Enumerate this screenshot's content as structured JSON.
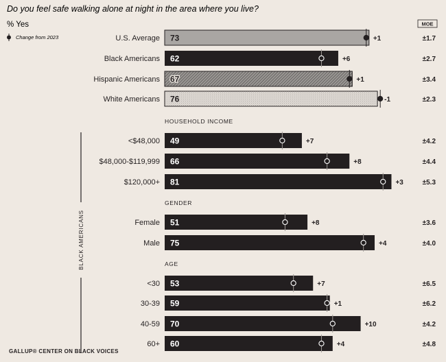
{
  "chart_data": {
    "type": "bar",
    "title": "Do you feel safe walking alone at night in the area where you live?",
    "ylabel": "% Yes",
    "legend_label": "Change from 2023",
    "moe_header": "MOE",
    "group_label": "BLACK AMERICANS",
    "footer": "GALLUP® CENTER ON BLACK VOICES",
    "xlim": [
      0,
      100
    ],
    "colors": {
      "background": "#efe9e2",
      "dark_bar": "#231f20",
      "us_average": "#a9a6a3",
      "hispanic_pattern": "#8e8b88",
      "white_pattern": "#d9d4cf"
    },
    "rows": [
      {
        "section": "",
        "label": "U.S. Average",
        "value": 73,
        "change_label": "+1",
        "change": 1,
        "moe": "±1.7",
        "style": "gray"
      },
      {
        "section": "",
        "label": "Black Americans",
        "value": 62,
        "change_label": "+6",
        "change": 6,
        "moe": "±2.7",
        "style": "dark"
      },
      {
        "section": "",
        "label": "Hispanic Americans",
        "value": 67,
        "change_label": "+1",
        "change": 1,
        "moe": "±3.4",
        "style": "hatch"
      },
      {
        "section": "",
        "label": "White Americans",
        "value": 76,
        "change_label": "-1",
        "change": -1,
        "moe": "±2.3",
        "style": "light"
      },
      {
        "section": "HOUSEHOLD INCOME",
        "label": "<$48,000",
        "value": 49,
        "change_label": "+7",
        "change": 7,
        "moe": "±4.2",
        "style": "dark"
      },
      {
        "section": "",
        "label": "$48,000-$119,999",
        "value": 66,
        "change_label": "+8",
        "change": 8,
        "moe": "±4.4",
        "style": "dark"
      },
      {
        "section": "",
        "label": "$120,000+",
        "value": 81,
        "change_label": "+3",
        "change": 3,
        "moe": "±5.3",
        "style": "dark"
      },
      {
        "section": "GENDER",
        "label": "Female",
        "value": 51,
        "change_label": "+8",
        "change": 8,
        "moe": "±3.6",
        "style": "dark"
      },
      {
        "section": "",
        "label": "Male",
        "value": 75,
        "change_label": "+4",
        "change": 4,
        "moe": "±4.0",
        "style": "dark"
      },
      {
        "section": "AGE",
        "label": "<30",
        "value": 53,
        "change_label": "+7",
        "change": 7,
        "moe": "±6.5",
        "style": "dark"
      },
      {
        "section": "",
        "label": "30-39",
        "value": 59,
        "change_label": "+1",
        "change": 1,
        "moe": "±6.2",
        "style": "dark"
      },
      {
        "section": "",
        "label": "40-59",
        "value": 70,
        "change_label": "+10",
        "change": 10,
        "moe": "±4.2",
        "style": "dark"
      },
      {
        "section": "",
        "label": "60+",
        "value": 60,
        "change_label": "+4",
        "change": 4,
        "moe": "±4.8",
        "style": "dark"
      }
    ]
  }
}
